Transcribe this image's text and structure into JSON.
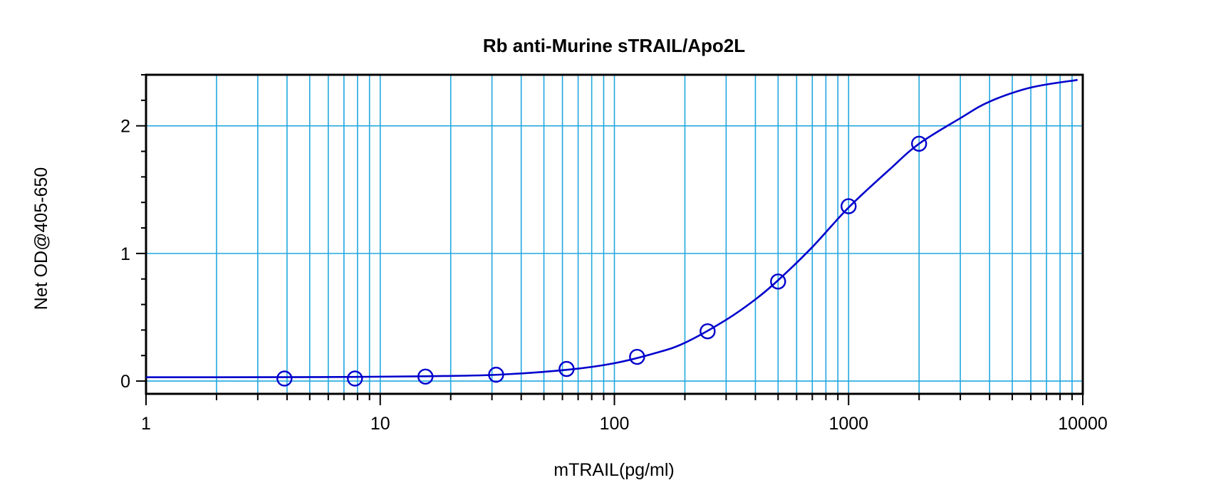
{
  "chart_data": {
    "type": "scatter",
    "title": "Rb anti-Murine sTRAIL/Apo2L",
    "xlabel": "mTRAIL(pg/ml)",
    "ylabel": "Net OD@405-650",
    "x_scale": "log",
    "xlim": [
      1,
      10000
    ],
    "ylim": [
      -0.1,
      2.4
    ],
    "x_ticks": [
      1,
      10,
      100,
      1000,
      10000
    ],
    "x_tick_labels": [
      "1",
      "10",
      "100",
      "1000",
      "10000"
    ],
    "y_ticks": [
      0,
      1,
      2
    ],
    "y_tick_labels": [
      "0",
      "1",
      "2"
    ],
    "grid": true,
    "legend": "none",
    "series": [
      {
        "kind": "points",
        "x": [
          3.9,
          7.8,
          15.6,
          31.25,
          62.5,
          125,
          250,
          500,
          1000,
          2000
        ],
        "y": [
          0.02,
          0.02,
          0.035,
          0.05,
          0.095,
          0.19,
          0.39,
          0.78,
          1.37,
          1.86
        ]
      },
      {
        "kind": "fitted-curve",
        "x": [
          1,
          2,
          4,
          8,
          16,
          32,
          64,
          100,
          150,
          200,
          300,
          400,
          500,
          700,
          1000,
          1500,
          2000,
          3000,
          4000,
          6000,
          9500
        ],
        "y": [
          0.03,
          0.03,
          0.031,
          0.033,
          0.038,
          0.05,
          0.09,
          0.14,
          0.22,
          0.3,
          0.48,
          0.64,
          0.79,
          1.05,
          1.36,
          1.66,
          1.86,
          2.06,
          2.19,
          2.3,
          2.36
        ]
      }
    ],
    "colors": {
      "series": "#0000cc",
      "grid": "#22a7df",
      "axis": "#000000"
    }
  }
}
